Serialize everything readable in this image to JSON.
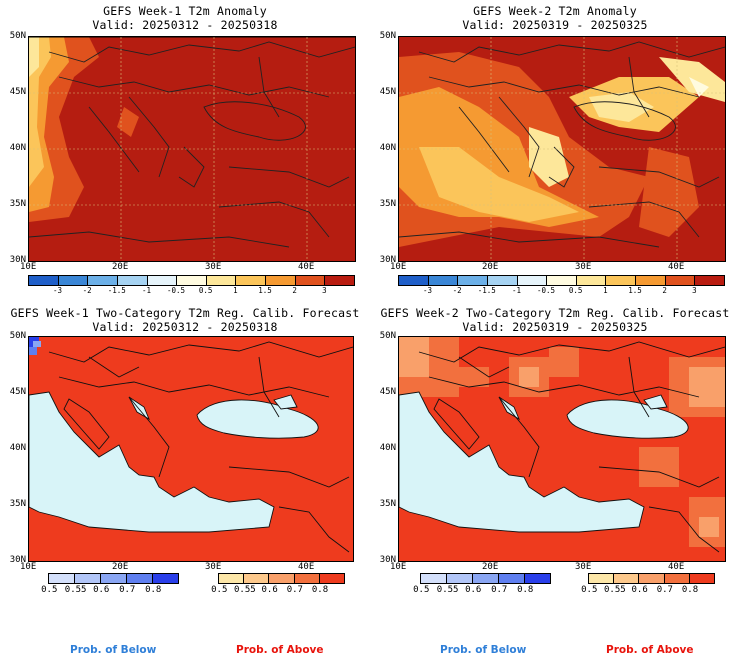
{
  "panels": [
    {
      "id": "p1",
      "line1": "GEFS Week-1 T2m Anomaly",
      "line2": "Valid: 20250312 - 20250318"
    },
    {
      "id": "p2",
      "line1": "GEFS Week-2 T2m Anomaly",
      "line2": "Valid: 20250319 - 20250325"
    },
    {
      "id": "p3",
      "line1": "GEFS Week-1 Two-Category T2m Reg. Calib. Forecast",
      "line2": "Valid: 20250312 - 20250318"
    },
    {
      "id": "p4",
      "line1": "GEFS Week-2 Two-Category T2m Reg. Calib. Forecast",
      "line2": "Valid: 20250319 - 20250325"
    }
  ],
  "axes": {
    "lat_labels": [
      "50N",
      "45N",
      "40N",
      "35N",
      "30N"
    ],
    "lon_labels": [
      "10E",
      "20E",
      "30E",
      "40E"
    ]
  },
  "anomaly_colorbar": {
    "ticks": [
      "-3",
      "-2",
      "-1.5",
      "-1",
      "-0.5",
      "0.5",
      "1",
      "1.5",
      "2",
      "3"
    ],
    "colors": [
      "#1f5fc9",
      "#3a86d6",
      "#6cb0e8",
      "#a6d3f2",
      "#e6f4fb",
      "#fffbe0",
      "#fde79a",
      "#fbc55a",
      "#f59a32",
      "#e0521e",
      "#b91c10"
    ]
  },
  "prob_below_colorbar": {
    "ticks": [
      "0.5",
      "0.55",
      "0.6",
      "0.7",
      "0.8"
    ],
    "colors": [
      "#d4e0fb",
      "#b2c6f8",
      "#8aa6f3",
      "#5f7ff0",
      "#2a3fea"
    ],
    "label": "Prob. of Below",
    "label_color": "#2f7fd8"
  },
  "prob_above_colorbar": {
    "ticks": [
      "0.5",
      "0.55",
      "0.6",
      "0.7",
      "0.8"
    ],
    "colors": [
      "#fde7a8",
      "#fdc98c",
      "#f9a06a",
      "#f2703e",
      "#ee3b1e"
    ],
    "label": "Prob. of Above",
    "label_color": "#e8140c"
  },
  "colors": {
    "sea_prob": "#d8f4f8",
    "anom_dark": "#b51d11",
    "prob_red": "#ee3b1e"
  }
}
